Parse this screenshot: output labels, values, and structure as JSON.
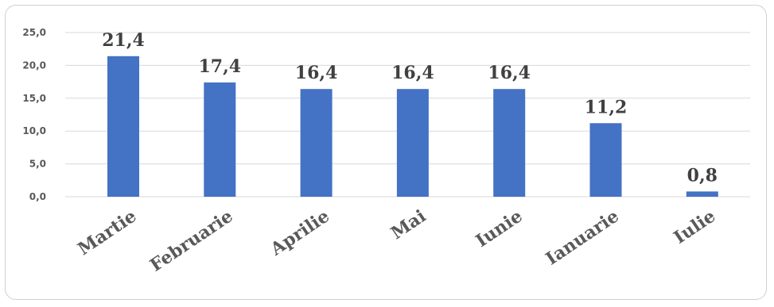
{
  "chart_data": {
    "type": "bar",
    "categories": [
      "Martie",
      "Februarie",
      "Aprilie",
      "Mai",
      "Iunie",
      "Ianuarie",
      "Iulie"
    ],
    "values": [
      21.4,
      17.4,
      16.4,
      16.4,
      16.4,
      11.2,
      0.8
    ],
    "data_labels": [
      "21,4",
      "17,4",
      "16,4",
      "16,4",
      "16,4",
      "11,2",
      "0,8"
    ],
    "y_ticks": [
      0,
      5,
      10,
      15,
      20,
      25
    ],
    "y_tick_labels": [
      "0,0",
      "5,0",
      "10,0",
      "15,0",
      "20,0",
      "25,0"
    ],
    "ylim": [
      0,
      25
    ],
    "grid": true,
    "bar_color": "#4472c4",
    "grid_color": "#d9d9d9",
    "title": "",
    "xlabel": "",
    "ylabel": ""
  }
}
